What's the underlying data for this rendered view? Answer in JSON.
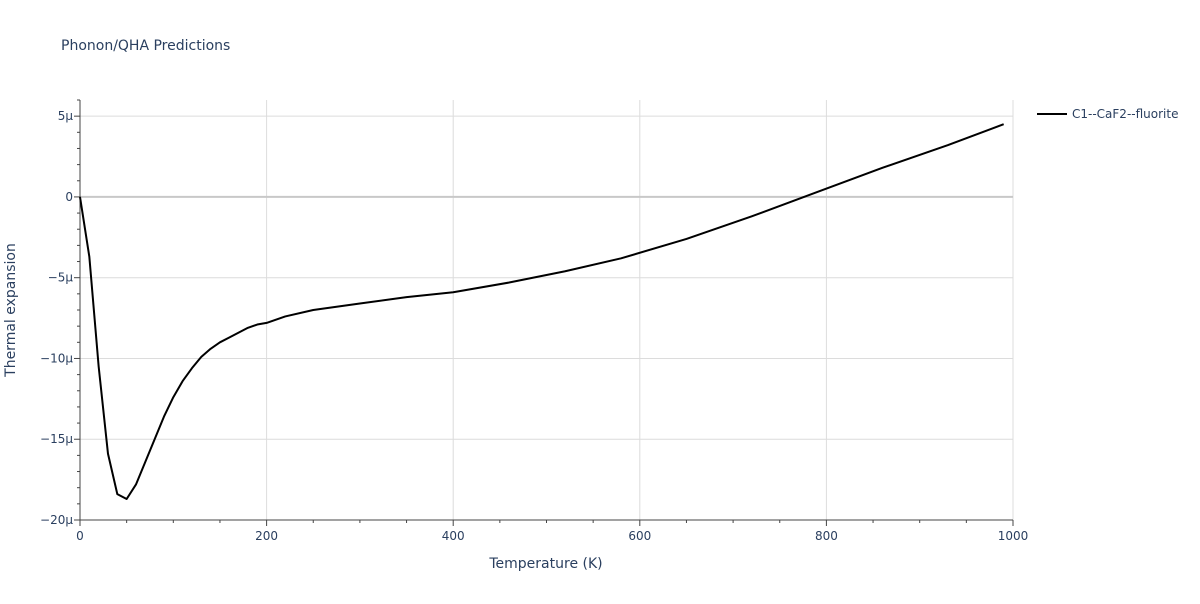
{
  "chart_data": {
    "type": "line",
    "title": "Phonon/QHA Predictions",
    "xlabel": "Temperature (K)",
    "ylabel": "Thermal expansion",
    "xlim": [
      0,
      1000
    ],
    "ylim": [
      -2e-05,
      6e-06
    ],
    "grid": true,
    "legend_position": "top-right-outside",
    "x_ticks": [
      {
        "value": 0,
        "label": "0"
      },
      {
        "value": 200,
        "label": "200"
      },
      {
        "value": 400,
        "label": "400"
      },
      {
        "value": 600,
        "label": "600"
      },
      {
        "value": 800,
        "label": "800"
      },
      {
        "value": 1000,
        "label": "1000"
      }
    ],
    "y_ticks": [
      {
        "value": 5e-06,
        "label": "5μ"
      },
      {
        "value": 0,
        "label": "0"
      },
      {
        "value": -5e-06,
        "label": "−5μ"
      },
      {
        "value": -1e-05,
        "label": "−10μ"
      },
      {
        "value": -1.5e-05,
        "label": "−15μ"
      },
      {
        "value": -2e-05,
        "label": "−20μ"
      }
    ],
    "x_minor_step": 50,
    "y_minor_step": 1e-06,
    "series": [
      {
        "name": "C1--CaF2--fluorite",
        "color": "#000000",
        "x": [
          0,
          10,
          20,
          30,
          40,
          50,
          60,
          70,
          80,
          90,
          100,
          110,
          120,
          130,
          140,
          150,
          160,
          170,
          180,
          190,
          200,
          220,
          250,
          300,
          350,
          400,
          460,
          520,
          580,
          650,
          720,
          790,
          860,
          930,
          990
        ],
        "y": [
          0,
          -3.7e-06,
          -1.05e-05,
          -1.59e-05,
          -1.84e-05,
          -1.87e-05,
          -1.78e-05,
          -1.64e-05,
          -1.5e-05,
          -1.36e-05,
          -1.24e-05,
          -1.14e-05,
          -1.06e-05,
          -9.9e-06,
          -9.4e-06,
          -9e-06,
          -8.7e-06,
          -8.4e-06,
          -8.1e-06,
          -7.9e-06,
          -7.8e-06,
          -7.4e-06,
          -7e-06,
          -6.6e-06,
          -6.2e-06,
          -5.9e-06,
          -5.3e-06,
          -4.6e-06,
          -3.8e-06,
          -2.6e-06,
          -1.2e-06,
          3e-07,
          1.8e-06,
          3.2e-06,
          4.5e-06
        ]
      }
    ]
  }
}
